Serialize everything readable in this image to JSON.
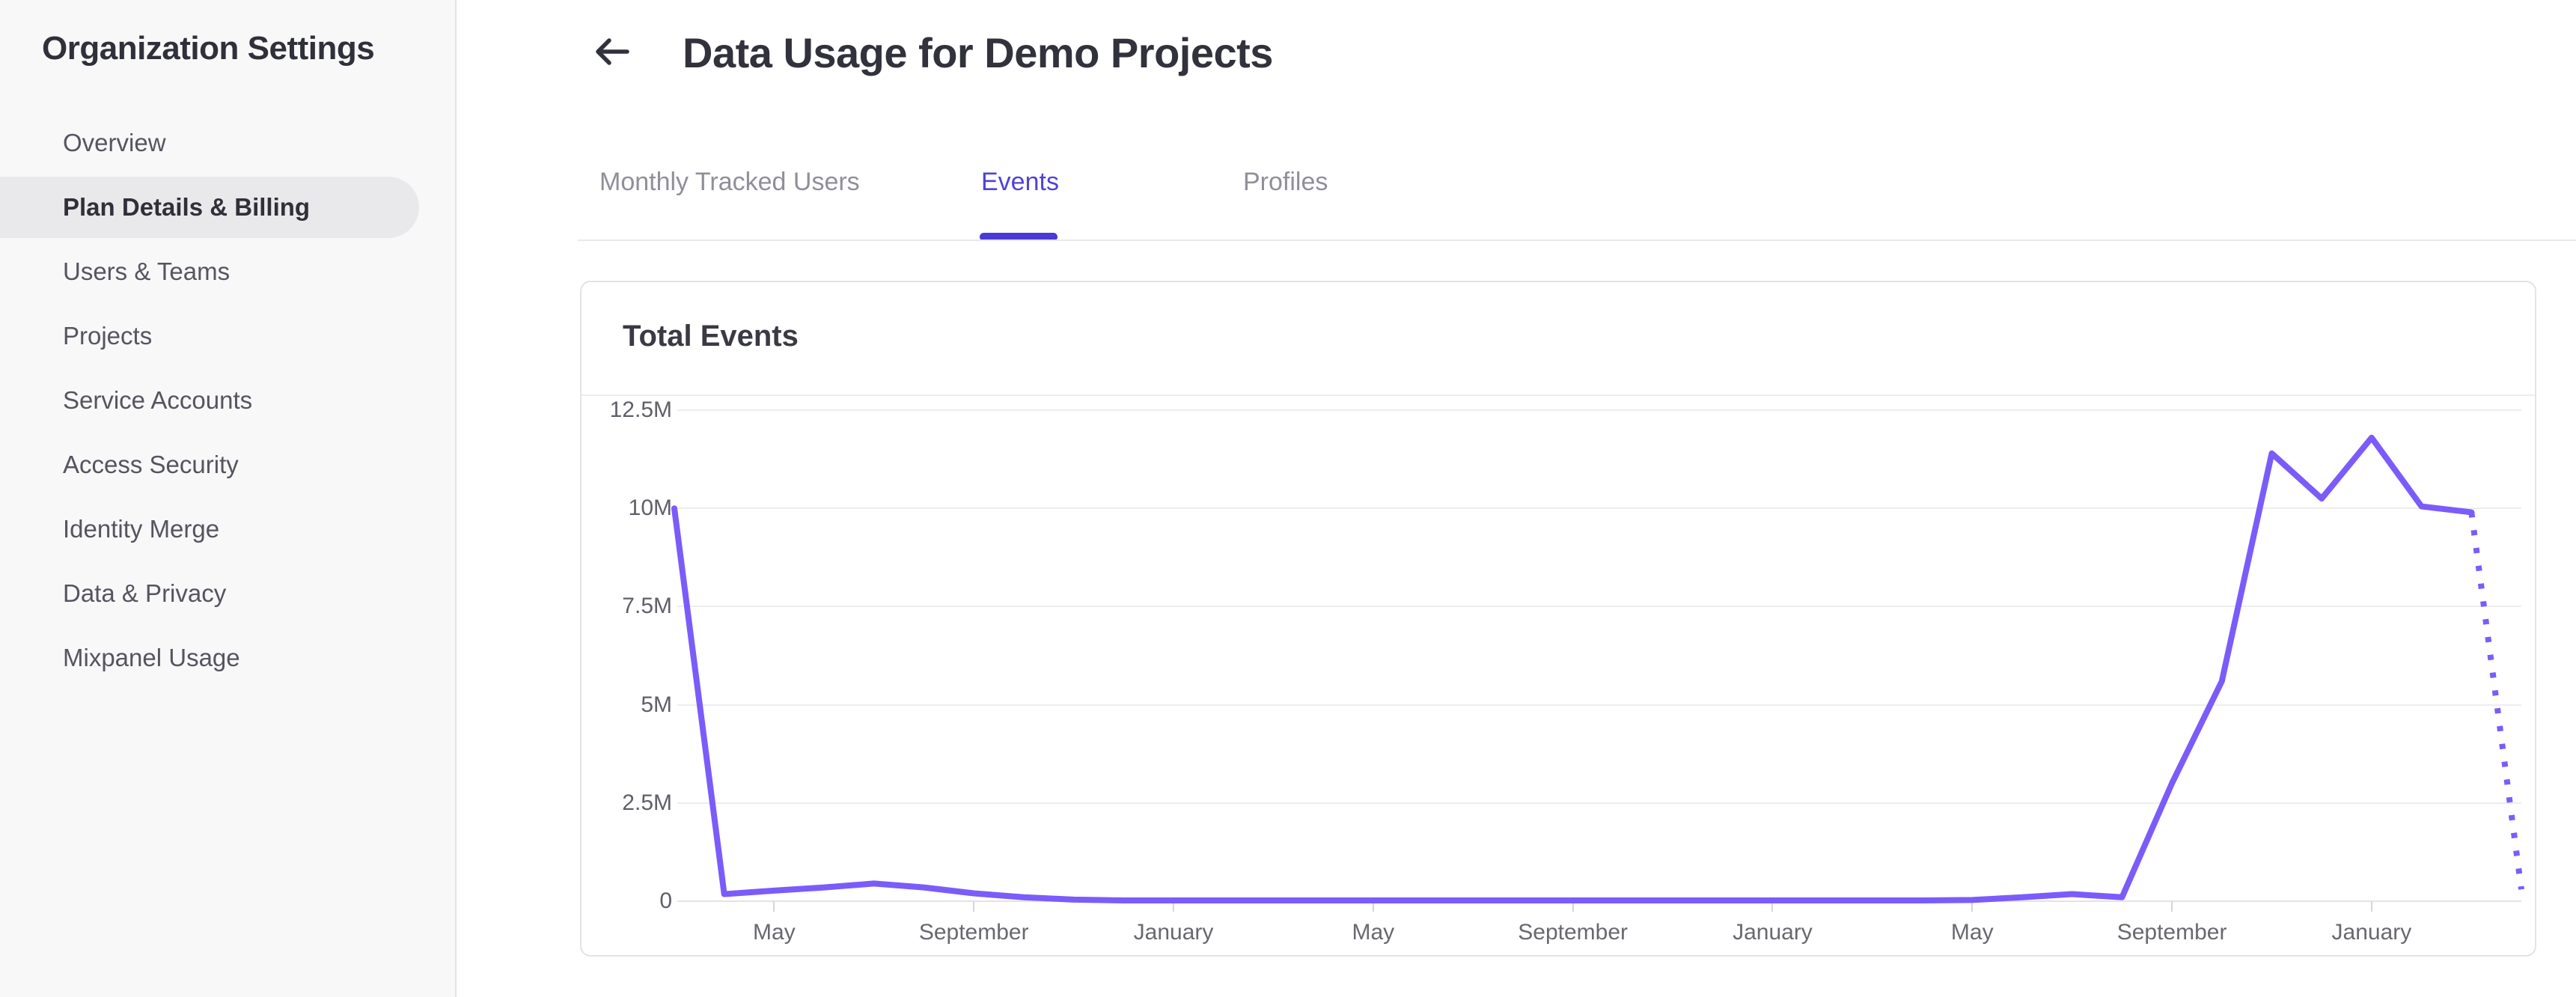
{
  "sidebar": {
    "title": "Organization Settings",
    "items": [
      {
        "label": "Overview",
        "active": false
      },
      {
        "label": "Plan Details & Billing",
        "active": true
      },
      {
        "label": "Users & Teams",
        "active": false
      },
      {
        "label": "Projects",
        "active": false
      },
      {
        "label": "Service Accounts",
        "active": false
      },
      {
        "label": "Access Security",
        "active": false
      },
      {
        "label": "Identity Merge",
        "active": false
      },
      {
        "label": "Data & Privacy",
        "active": false
      },
      {
        "label": "Mixpanel Usage",
        "active": false
      }
    ]
  },
  "header": {
    "title": "Data Usage for Demo Projects",
    "back_icon": "arrow-left"
  },
  "tabs": {
    "items": [
      {
        "label": "Monthly Tracked Users",
        "active": false
      },
      {
        "label": "Events",
        "active": true
      },
      {
        "label": "Profiles",
        "active": false
      }
    ]
  },
  "card": {
    "title": "Total Events"
  },
  "chart_data": {
    "type": "line",
    "title": "Total Events",
    "series": [
      {
        "name": "Total Events",
        "unit": "millions of events",
        "values_millions": [
          10,
          0.18,
          0.27,
          0.35,
          0.45,
          0.35,
          0.2,
          0.1,
          0.04,
          0.02,
          0.02,
          0.02,
          0.02,
          0.02,
          0.02,
          0.02,
          0.02,
          0.02,
          0.02,
          0.02,
          0.02,
          0.02,
          0.02,
          0.02,
          0.02,
          0.02,
          0.03,
          0.1,
          0.18,
          0.1,
          3.0,
          5.6,
          11.4,
          10.25,
          11.8,
          10.05,
          9.9,
          0.3
        ]
      }
    ],
    "x_start_month": "March",
    "x_tick_labels": [
      "May",
      "September",
      "January",
      "May",
      "September",
      "January",
      "May",
      "September",
      "January"
    ],
    "x_tick_indices": [
      2,
      6,
      10,
      14,
      18,
      22,
      26,
      30,
      34
    ],
    "y_tick_labels": [
      "12.5M",
      "10M",
      "7.5M",
      "5M",
      "2.5M",
      "0"
    ],
    "ylim_millions": [
      0,
      12.5
    ],
    "grid": "horizontal",
    "legend": "none",
    "last_segment_style": "dotted",
    "line_color": "#7b5cfa"
  },
  "colors": {
    "accent": "#4f42da",
    "tab_underline": "#4b3ad4",
    "chart_line": "#7b5cfa",
    "sidebar_bg": "#f8f8f9",
    "active_item_bg": "#e9e9eb",
    "text_dark": "#32323c",
    "text_gray": "#55555f"
  }
}
